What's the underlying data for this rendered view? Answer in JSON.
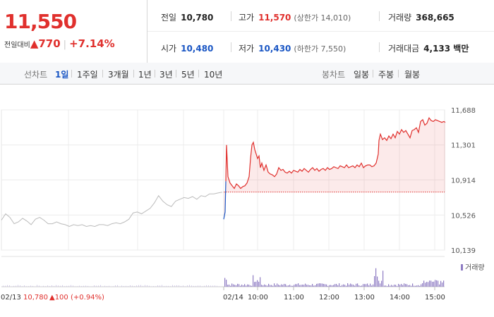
{
  "summary": {
    "price": "11,550",
    "change_label": "전일대비",
    "change_value": "▲770",
    "change_pct": "+7.14%",
    "prev_close": {
      "label": "전일",
      "value": "10,780"
    },
    "open": {
      "label": "시가",
      "value": "10,480"
    },
    "high": {
      "label": "고가",
      "value": "11,570",
      "sub": "(상한가 14,010)"
    },
    "low": {
      "label": "저가",
      "value": "10,430",
      "sub": "(하한가 7,550)"
    },
    "volume": {
      "label": "거래량",
      "value": "368,665"
    },
    "amount": {
      "label": "거래대금",
      "value": "4,133 백만"
    }
  },
  "tabs": {
    "line_label": "선차트",
    "line_items": [
      "1일",
      "1주일",
      "3개월",
      "1년",
      "3년",
      "5년",
      "10년"
    ],
    "active": "1일",
    "candle_label": "봉차트",
    "candle_items": [
      "일봉",
      "주봉",
      "월봉"
    ]
  },
  "colors": {
    "up": "#e0302d",
    "down": "#1a56c4",
    "prev_day_line": "#bbbbbb",
    "volume": "#8e7cc3"
  },
  "chart_data": {
    "type": "line",
    "title": "",
    "x_unit": "time",
    "ytick_labels": [
      "11,688",
      "11,301",
      "10,914",
      "10,526",
      "10,139"
    ],
    "yticks": [
      11688,
      11301,
      10914,
      10526,
      10139
    ],
    "ylim": [
      10139,
      11688
    ],
    "reference_line": 10780,
    "xtick_labels": [
      "02/14",
      "10:00",
      "11:00",
      "12:00",
      "13:00",
      "14:00",
      "15:00"
    ],
    "volume_legend": "거래량",
    "footer": {
      "date": "02/13",
      "price": "10,780",
      "change": "▲100",
      "pct": "(+0.94%)"
    },
    "series": [
      {
        "role": "previous_day",
        "color": "#bbbbbb",
        "x": [
          0,
          6,
          12,
          18,
          24,
          30,
          36,
          42,
          48,
          54,
          60,
          66,
          72,
          78,
          84,
          90,
          96,
          102,
          108,
          114,
          120,
          126,
          132,
          138,
          144,
          150,
          156,
          162,
          168,
          174,
          180,
          186,
          192,
          198,
          204,
          210,
          216,
          222,
          228,
          234,
          240,
          246,
          252,
          258,
          264,
          270,
          276,
          282,
          288,
          294,
          300,
          306,
          312
        ],
        "values": [
          10470,
          10540,
          10500,
          10430,
          10450,
          10490,
          10460,
          10420,
          10480,
          10500,
          10470,
          10430,
          10430,
          10450,
          10430,
          10420,
          10400,
          10420,
          10410,
          10420,
          10400,
          10410,
          10400,
          10420,
          10420,
          10410,
          10430,
          10440,
          10430,
          10450,
          10480,
          10550,
          10560,
          10540,
          10570,
          10600,
          10660,
          10740,
          10680,
          10640,
          10620,
          10680,
          10700,
          10720,
          10710,
          10730,
          10700,
          10740,
          10730,
          10760,
          10760,
          10770,
          10780
        ]
      },
      {
        "role": "today",
        "color": "#e0302d",
        "x": [
          0,
          2,
          3,
          4,
          6,
          9,
          12,
          15,
          18,
          21,
          24,
          27,
          30,
          33,
          36,
          38,
          40,
          42,
          44,
          46,
          48,
          50,
          52,
          54,
          57,
          60,
          63,
          66,
          69,
          72,
          75,
          78,
          81,
          84,
          87,
          90,
          93,
          96,
          99,
          102,
          105,
          108,
          111,
          114,
          117,
          120,
          123,
          126,
          129,
          132,
          135,
          138,
          141,
          144,
          147,
          150,
          153,
          156,
          159,
          162,
          165,
          168,
          171,
          174,
          177,
          180,
          183,
          186,
          189,
          192,
          195,
          198,
          201,
          204,
          207,
          210,
          213,
          216,
          219,
          220,
          222,
          225,
          228,
          231,
          234,
          237,
          240,
          243,
          246,
          249,
          252,
          255,
          258,
          261,
          264,
          267,
          270,
          273,
          276,
          279,
          282,
          285,
          288,
          291,
          294,
          297,
          300,
          303,
          306,
          309,
          312,
          314
        ],
        "values": [
          10480,
          10560,
          10900,
          11300,
          10950,
          10880,
          10850,
          10820,
          10870,
          10850,
          10820,
          10840,
          10850,
          10880,
          10950,
          11150,
          11300,
          11330,
          11250,
          11200,
          11150,
          11180,
          11050,
          11100,
          11020,
          11080,
          11000,
          10980,
          10970,
          10950,
          10980,
          11050,
          11020,
          11030,
          11000,
          10990,
          11010,
          10990,
          11020,
          11010,
          11000,
          11030,
          11010,
          11040,
          11020,
          11000,
          11030,
          11050,
          11020,
          11040,
          11010,
          11030,
          11040,
          11020,
          11050,
          11030,
          11040,
          11060,
          11050,
          11040,
          11070,
          11060,
          11050,
          11080,
          11050,
          11060,
          11070,
          11050,
          11080,
          11060,
          11100,
          11050,
          11070,
          11080,
          11080,
          11060,
          11070,
          11100,
          11200,
          11350,
          11420,
          11360,
          11380,
          11350,
          11400,
          11370,
          11420,
          11380,
          11450,
          11420,
          11470,
          11440,
          11460,
          11420,
          11380,
          11460,
          11470,
          11490,
          11440,
          11560,
          11580,
          11520,
          11540,
          11600,
          11570,
          11560,
          11580,
          11570,
          11560,
          11550,
          11560,
          11550
        ]
      }
    ]
  }
}
